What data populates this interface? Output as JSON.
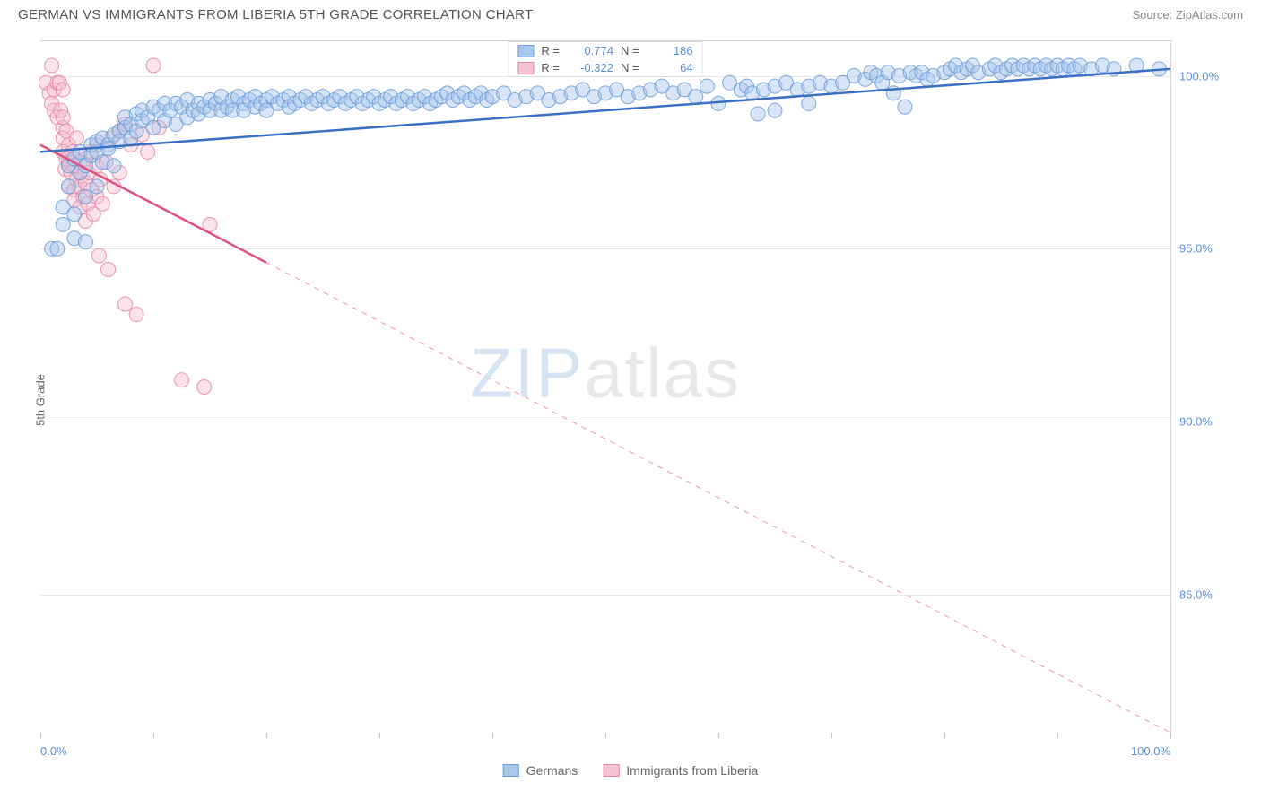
{
  "title": "GERMAN VS IMMIGRANTS FROM LIBERIA 5TH GRADE CORRELATION CHART",
  "source": "Source: ZipAtlas.com",
  "y_axis_label": "5th Grade",
  "watermark_zip": "ZIP",
  "watermark_atlas": "atlas",
  "chart": {
    "type": "scatter",
    "background_color": "#ffffff",
    "grid_color": "#e8e8e8",
    "border_color": "#d0d0d0",
    "xlim": [
      0,
      100
    ],
    "ylim": [
      81,
      101
    ],
    "x_ticks": [
      0,
      10,
      20,
      30,
      40,
      50,
      60,
      70,
      80,
      90,
      100
    ],
    "x_tick_labels_shown": {
      "0": "0.0%",
      "100": "100.0%"
    },
    "y_ticks": [
      85,
      90,
      95,
      100
    ],
    "y_tick_labels": {
      "85": "85.0%",
      "90": "90.0%",
      "95": "95.0%",
      "100": "100.0%"
    },
    "tick_label_color": "#5a8fd6",
    "tick_label_fontsize": 13,
    "axis_label_color": "#666666",
    "axis_label_fontsize": 13,
    "marker_radius": 8,
    "marker_opacity": 0.45,
    "marker_stroke_opacity": 0.9,
    "line_width": 2.5
  },
  "series": {
    "germans": {
      "label": "Germans",
      "color_fill": "#a9c6eb",
      "color_stroke": "#6f9fdb",
      "line_color": "#3b6fc4",
      "R_label": "R =",
      "R": "0.774",
      "N_label": "N =",
      "N": "186",
      "trend_line": {
        "x1": 0,
        "y1": 97.8,
        "x2": 100,
        "y2": 100.2
      },
      "points": [
        [
          1,
          95.0
        ],
        [
          1.5,
          95.0
        ],
        [
          2,
          95.7
        ],
        [
          2,
          96.2
        ],
        [
          2.5,
          96.8
        ],
        [
          2.5,
          97.4
        ],
        [
          3,
          95.3
        ],
        [
          3,
          96.0
        ],
        [
          3,
          97.6
        ],
        [
          3.5,
          97.8
        ],
        [
          3.5,
          97.2
        ],
        [
          4,
          97.4
        ],
        [
          4,
          96.5
        ],
        [
          4,
          95.2
        ],
        [
          4.5,
          97.7
        ],
        [
          4.5,
          98.0
        ],
        [
          5,
          97.8
        ],
        [
          5,
          98.1
        ],
        [
          5,
          96.8
        ],
        [
          5.5,
          97.5
        ],
        [
          5.5,
          98.2
        ],
        [
          6,
          98.0
        ],
        [
          6,
          97.9
        ],
        [
          6.5,
          98.3
        ],
        [
          6.5,
          97.4
        ],
        [
          7,
          98.4
        ],
        [
          7,
          98.1
        ],
        [
          7.5,
          98.5
        ],
        [
          7.5,
          98.8
        ],
        [
          8,
          98.6
        ],
        [
          8,
          98.2
        ],
        [
          8.5,
          98.9
        ],
        [
          8.5,
          98.4
        ],
        [
          9,
          98.7
        ],
        [
          9,
          99.0
        ],
        [
          9.5,
          98.8
        ],
        [
          10,
          99.1
        ],
        [
          10,
          98.5
        ],
        [
          10.5,
          99.0
        ],
        [
          11,
          99.2
        ],
        [
          11,
          98.7
        ],
        [
          11.5,
          99.0
        ],
        [
          12,
          99.2
        ],
        [
          12,
          98.6
        ],
        [
          12.5,
          99.1
        ],
        [
          13,
          99.3
        ],
        [
          13,
          98.8
        ],
        [
          13.5,
          99.0
        ],
        [
          14,
          99.2
        ],
        [
          14,
          98.9
        ],
        [
          14.5,
          99.1
        ],
        [
          15,
          99.3
        ],
        [
          15,
          99.0
        ],
        [
          15.5,
          99.2
        ],
        [
          16,
          99.4
        ],
        [
          16,
          99.0
        ],
        [
          16.5,
          99.1
        ],
        [
          17,
          99.3
        ],
        [
          17,
          99.0
        ],
        [
          17.5,
          99.4
        ],
        [
          18,
          99.2
        ],
        [
          18,
          99.0
        ],
        [
          18.5,
          99.3
        ],
        [
          19,
          99.4
        ],
        [
          19,
          99.1
        ],
        [
          19.5,
          99.2
        ],
        [
          20,
          99.3
        ],
        [
          20,
          99.0
        ],
        [
          20.5,
          99.4
        ],
        [
          21,
          99.2
        ],
        [
          21.5,
          99.3
        ],
        [
          22,
          99.4
        ],
        [
          22,
          99.1
        ],
        [
          22.5,
          99.2
        ],
        [
          23,
          99.3
        ],
        [
          23.5,
          99.4
        ],
        [
          24,
          99.2
        ],
        [
          24.5,
          99.3
        ],
        [
          25,
          99.4
        ],
        [
          25.5,
          99.2
        ],
        [
          26,
          99.3
        ],
        [
          26.5,
          99.4
        ],
        [
          27,
          99.2
        ],
        [
          27.5,
          99.3
        ],
        [
          28,
          99.4
        ],
        [
          28.5,
          99.2
        ],
        [
          29,
          99.3
        ],
        [
          29.5,
          99.4
        ],
        [
          30,
          99.2
        ],
        [
          30.5,
          99.3
        ],
        [
          31,
          99.4
        ],
        [
          31.5,
          99.2
        ],
        [
          32,
          99.3
        ],
        [
          32.5,
          99.4
        ],
        [
          33,
          99.2
        ],
        [
          33.5,
          99.3
        ],
        [
          34,
          99.4
        ],
        [
          34.5,
          99.2
        ],
        [
          35,
          99.3
        ],
        [
          35.5,
          99.4
        ],
        [
          36,
          99.5
        ],
        [
          36.5,
          99.3
        ],
        [
          37,
          99.4
        ],
        [
          37.5,
          99.5
        ],
        [
          38,
          99.3
        ],
        [
          38.5,
          99.4
        ],
        [
          39,
          99.5
        ],
        [
          39.5,
          99.3
        ],
        [
          40,
          99.4
        ],
        [
          41,
          99.5
        ],
        [
          42,
          99.3
        ],
        [
          43,
          99.4
        ],
        [
          44,
          99.5
        ],
        [
          45,
          99.3
        ],
        [
          46,
          99.4
        ],
        [
          47,
          99.5
        ],
        [
          48,
          99.6
        ],
        [
          49,
          99.4
        ],
        [
          50,
          99.5
        ],
        [
          51,
          99.6
        ],
        [
          52,
          99.4
        ],
        [
          53,
          99.5
        ],
        [
          54,
          99.6
        ],
        [
          55,
          99.7
        ],
        [
          56,
          99.5
        ],
        [
          57,
          99.6
        ],
        [
          58,
          99.4
        ],
        [
          59,
          99.7
        ],
        [
          60,
          99.2
        ],
        [
          61,
          99.8
        ],
        [
          62,
          99.6
        ],
        [
          62.5,
          99.7
        ],
        [
          63,
          99.5
        ],
        [
          63.5,
          98.9
        ],
        [
          64,
          99.6
        ],
        [
          65,
          99.7
        ],
        [
          65,
          99.0
        ],
        [
          66,
          99.8
        ],
        [
          67,
          99.6
        ],
        [
          68,
          99.2
        ],
        [
          68,
          99.7
        ],
        [
          69,
          99.8
        ],
        [
          70,
          99.7
        ],
        [
          71,
          99.8
        ],
        [
          72,
          100.0
        ],
        [
          73,
          99.9
        ],
        [
          73.5,
          100.1
        ],
        [
          74,
          100.0
        ],
        [
          74.5,
          99.8
        ],
        [
          75,
          100.1
        ],
        [
          75.5,
          99.5
        ],
        [
          76,
          100.0
        ],
        [
          76.5,
          99.1
        ],
        [
          77,
          100.1
        ],
        [
          77.5,
          100.0
        ],
        [
          78,
          100.1
        ],
        [
          78.5,
          99.9
        ],
        [
          79,
          100.0
        ],
        [
          80,
          100.1
        ],
        [
          80.5,
          100.2
        ],
        [
          81,
          100.3
        ],
        [
          81.5,
          100.1
        ],
        [
          82,
          100.2
        ],
        [
          82.5,
          100.3
        ],
        [
          83,
          100.1
        ],
        [
          84,
          100.2
        ],
        [
          84.5,
          100.3
        ],
        [
          85,
          100.1
        ],
        [
          85.5,
          100.2
        ],
        [
          86,
          100.3
        ],
        [
          86.5,
          100.2
        ],
        [
          87,
          100.3
        ],
        [
          87.5,
          100.2
        ],
        [
          88,
          100.3
        ],
        [
          88.5,
          100.2
        ],
        [
          89,
          100.3
        ],
        [
          89.5,
          100.2
        ],
        [
          90,
          100.3
        ],
        [
          90.5,
          100.2
        ],
        [
          91,
          100.3
        ],
        [
          91.5,
          100.2
        ],
        [
          92,
          100.3
        ],
        [
          93,
          100.2
        ],
        [
          94,
          100.3
        ],
        [
          95,
          100.2
        ],
        [
          97,
          100.3
        ],
        [
          99,
          100.2
        ]
      ]
    },
    "liberia": {
      "label": "Immigrants from Liberia",
      "color_fill": "#f4c2d1",
      "color_stroke": "#e788a6",
      "line_color": "#e0517d",
      "line_dash_after_x": 20,
      "R_label": "R =",
      "R": "-0.322",
      "N_label": "N =",
      "N": "64",
      "trend_line": {
        "x1": 0,
        "y1": 98.0,
        "x2": 100,
        "y2": 81.0
      },
      "points": [
        [
          0.5,
          99.8
        ],
        [
          0.8,
          99.5
        ],
        [
          1,
          100.3
        ],
        [
          1,
          99.2
        ],
        [
          1.2,
          99.0
        ],
        [
          1.2,
          99.6
        ],
        [
          1.5,
          99.8
        ],
        [
          1.5,
          98.8
        ],
        [
          1.7,
          99.8
        ],
        [
          1.8,
          99.0
        ],
        [
          2,
          98.5
        ],
        [
          2,
          98.2
        ],
        [
          2,
          98.8
        ],
        [
          2,
          99.6
        ],
        [
          2,
          97.8
        ],
        [
          2.2,
          97.3
        ],
        [
          2.3,
          97.6
        ],
        [
          2.3,
          98.4
        ],
        [
          2.5,
          98.0
        ],
        [
          2.5,
          97.5
        ],
        [
          2.5,
          96.8
        ],
        [
          2.7,
          97.2
        ],
        [
          2.8,
          97.8
        ],
        [
          3,
          97.4
        ],
        [
          3,
          96.7
        ],
        [
          3,
          96.4
        ],
        [
          3.2,
          97.0
        ],
        [
          3.2,
          98.2
        ],
        [
          3.5,
          97.5
        ],
        [
          3.5,
          96.8
        ],
        [
          3.5,
          96.2
        ],
        [
          3.7,
          97.1
        ],
        [
          3.8,
          96.5
        ],
        [
          4,
          97.6
        ],
        [
          4,
          96.9
        ],
        [
          4,
          95.8
        ],
        [
          4.2,
          96.3
        ],
        [
          4.3,
          97.2
        ],
        [
          4.5,
          96.7
        ],
        [
          4.5,
          97.8
        ],
        [
          4.7,
          96.0
        ],
        [
          5,
          97.4
        ],
        [
          5,
          96.5
        ],
        [
          5,
          98.0
        ],
        [
          5.2,
          94.8
        ],
        [
          5.3,
          97.0
        ],
        [
          5.5,
          96.3
        ],
        [
          5.8,
          97.5
        ],
        [
          6,
          94.4
        ],
        [
          6.3,
          98.2
        ],
        [
          6.5,
          96.8
        ],
        [
          7,
          98.4
        ],
        [
          7,
          97.2
        ],
        [
          7.5,
          98.6
        ],
        [
          7.5,
          93.4
        ],
        [
          8,
          98.0
        ],
        [
          8.5,
          93.1
        ],
        [
          9,
          98.3
        ],
        [
          9.5,
          97.8
        ],
        [
          10,
          100.3
        ],
        [
          10.5,
          98.5
        ],
        [
          12.5,
          91.2
        ],
        [
          14.5,
          91.0
        ],
        [
          15,
          95.7
        ]
      ]
    }
  }
}
